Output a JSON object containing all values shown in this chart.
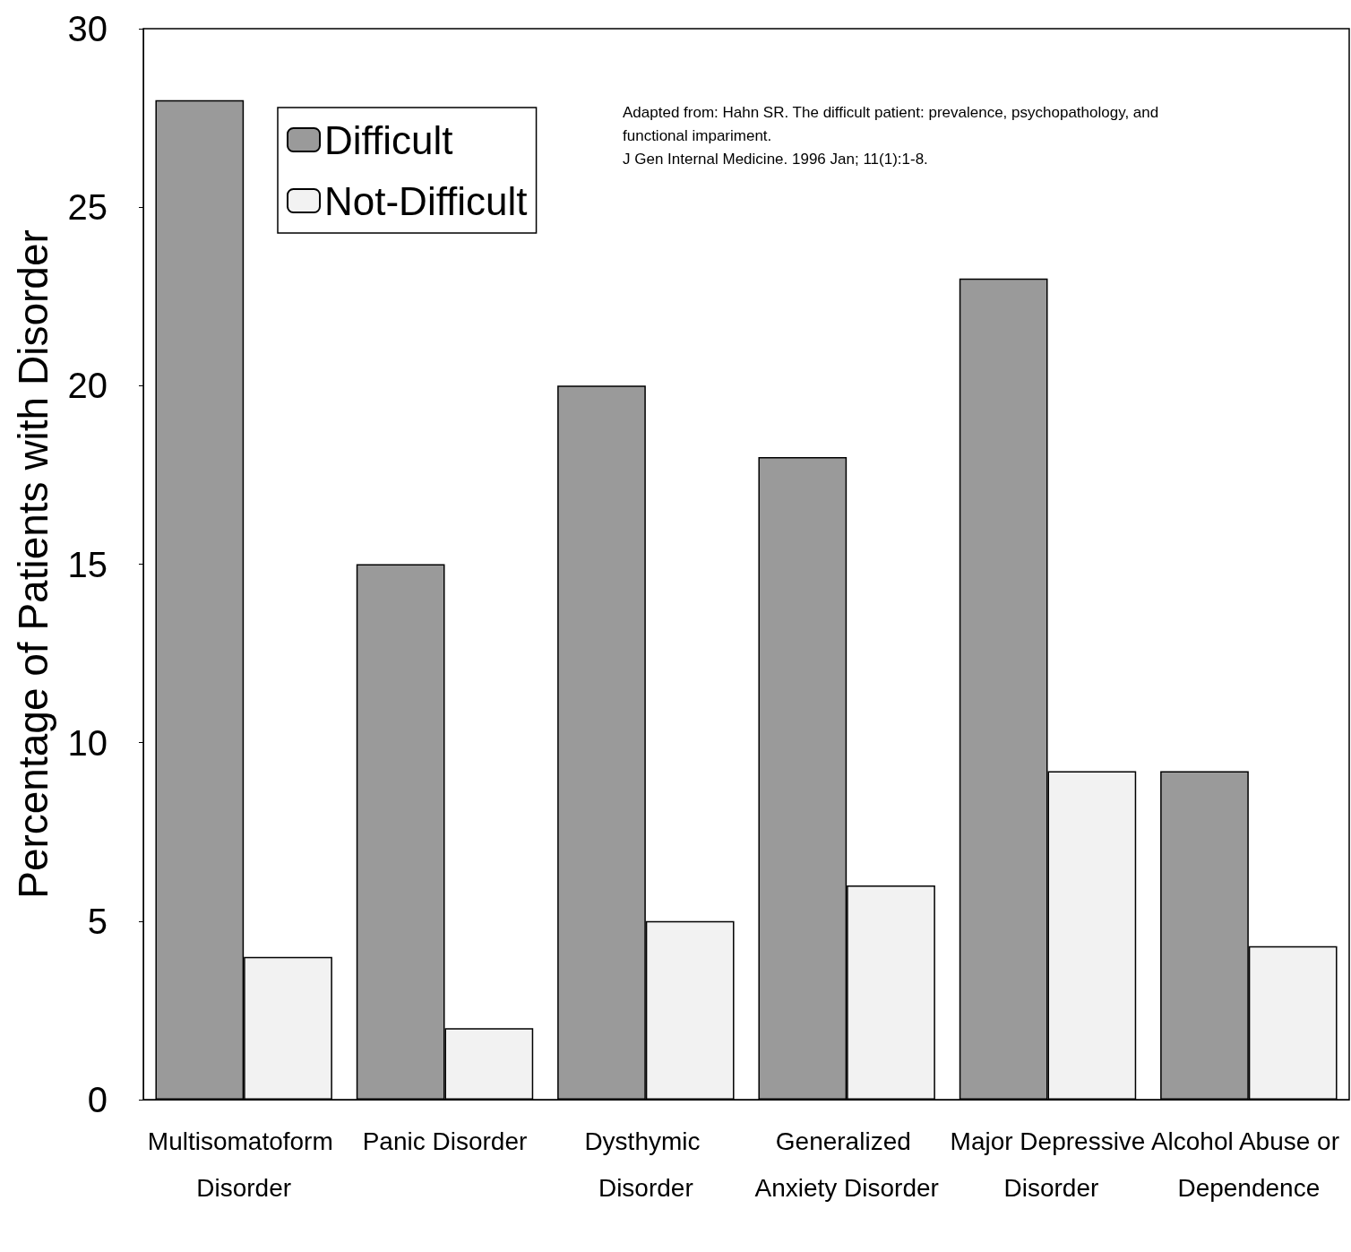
{
  "chart_data": {
    "type": "bar",
    "ylabel": "Percentage of Patients with Disorder",
    "categories": [
      "Multisomatoform Disorder",
      "Panic Disorder",
      "Dysthymic Disorder",
      "Generalized Anxiety Disorder",
      "Major Depressive Disorder",
      "Alcohol Abuse or Dependence"
    ],
    "series": [
      {
        "name": "Difficult",
        "color": "#9a9a9a",
        "values": [
          28,
          15,
          20,
          18,
          23,
          9.2
        ]
      },
      {
        "name": "Not-Difficult",
        "color": "#f2f2f2",
        "values": [
          4,
          2,
          5,
          6,
          9.2,
          4.3
        ]
      }
    ],
    "ylim": [
      0,
      30
    ],
    "yticks": [
      0,
      5,
      10,
      15,
      20,
      25,
      30
    ],
    "grid": false,
    "legend": "top left",
    "annotations": [
      "Adapted from: Hahn SR. The difficult patient: prevalence, psychopathology, and functional impariment.\nJ Gen Internal Medicine. 1996 Jan; 11(1):1-8."
    ]
  }
}
